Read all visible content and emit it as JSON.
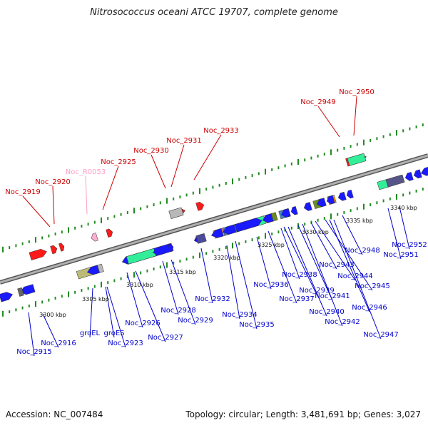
{
  "title": "Nitrosococcus oceani ATCC 19707, complete genome",
  "footer": {
    "accession": "Accession: NC_007484",
    "topology": "Topology: circular; Length: 3,481,691 bp; Genes: 3,027"
  },
  "colors": {
    "backbone": "#8c8c8c",
    "tick": "#228b22",
    "label_red": "#cc0000",
    "label_pink": "#ff9ec4",
    "label_blue": "#0000cc"
  },
  "kbp_labels": [
    "3300 kbp",
    "3305 kbp",
    "3310 kbp",
    "3315 kbp",
    "3320 kbp",
    "3325 kbp",
    "3330 kbp",
    "3335 kbp",
    "3340 kbp"
  ],
  "gene_labels": {
    "top": [
      "Noc_2919",
      "Noc_2920",
      "Noc_R0053",
      "Noc_2925",
      "Noc_2930",
      "Noc_2931",
      "Noc_2933",
      "Noc_2949",
      "Noc_2950"
    ],
    "bottom": [
      "Noc_2915",
      "Noc_2916",
      "groEL",
      "groES",
      "Noc_2923",
      "Noc_2926",
      "Noc_2927",
      "Noc_2928",
      "Noc_2929",
      "Noc_2932",
      "Noc_2934",
      "Noc_2935",
      "Noc_2936",
      "Noc_2937",
      "Noc_2938",
      "Noc_2939",
      "Noc_2940",
      "Noc_2941",
      "Noc_2942",
      "Noc_2943",
      "Noc_2944",
      "Noc_2945",
      "Noc_2946",
      "Noc_2947",
      "Noc_2948",
      "Noc_2951",
      "Noc_2952"
    ]
  },
  "gene_colors": {
    "forward_strand": "#1a1aff",
    "reverse_strand": "#ff1a1a",
    "rna": "#ffb0d0",
    "teal": "#33ee99",
    "magenta": "#ff3399",
    "olive": "#bbbb77",
    "steel": "#4488bb",
    "navy": "#4b4b99",
    "gray": "#b8b8b8",
    "orange": "#ff9900",
    "olive_dark": "#6b8e23",
    "purple": "#555588",
    "salmon": "#ff8888"
  }
}
